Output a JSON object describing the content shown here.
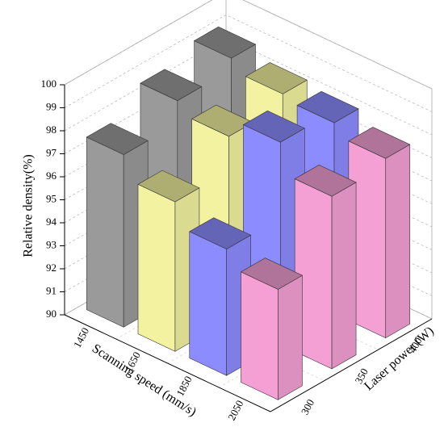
{
  "chart_data": {
    "type": "bar3d",
    "xlabel": "Scanning speed (mm/s)",
    "ylabel": "Laser power (W)",
    "zlabel": "Relative density(%)",
    "xcategories": [
      1450,
      1650,
      1850,
      2050
    ],
    "ycategories": [
      300,
      350,
      400
    ],
    "values": [
      [
        97.5,
        98.5,
        99.0
      ],
      [
        96.5,
        98.0,
        98.5
      ],
      [
        95.5,
        98.8,
        98.3
      ],
      [
        94.8,
        97.5,
        97.8
      ]
    ],
    "colors": [
      "#9a9a9a",
      "#f2f2a0",
      "#8c8cff",
      "#f4a0d4"
    ],
    "zlim": [
      90,
      100
    ],
    "zticks": [
      90,
      91,
      92,
      93,
      94,
      95,
      96,
      97,
      98,
      99,
      100
    ],
    "grid": true
  }
}
